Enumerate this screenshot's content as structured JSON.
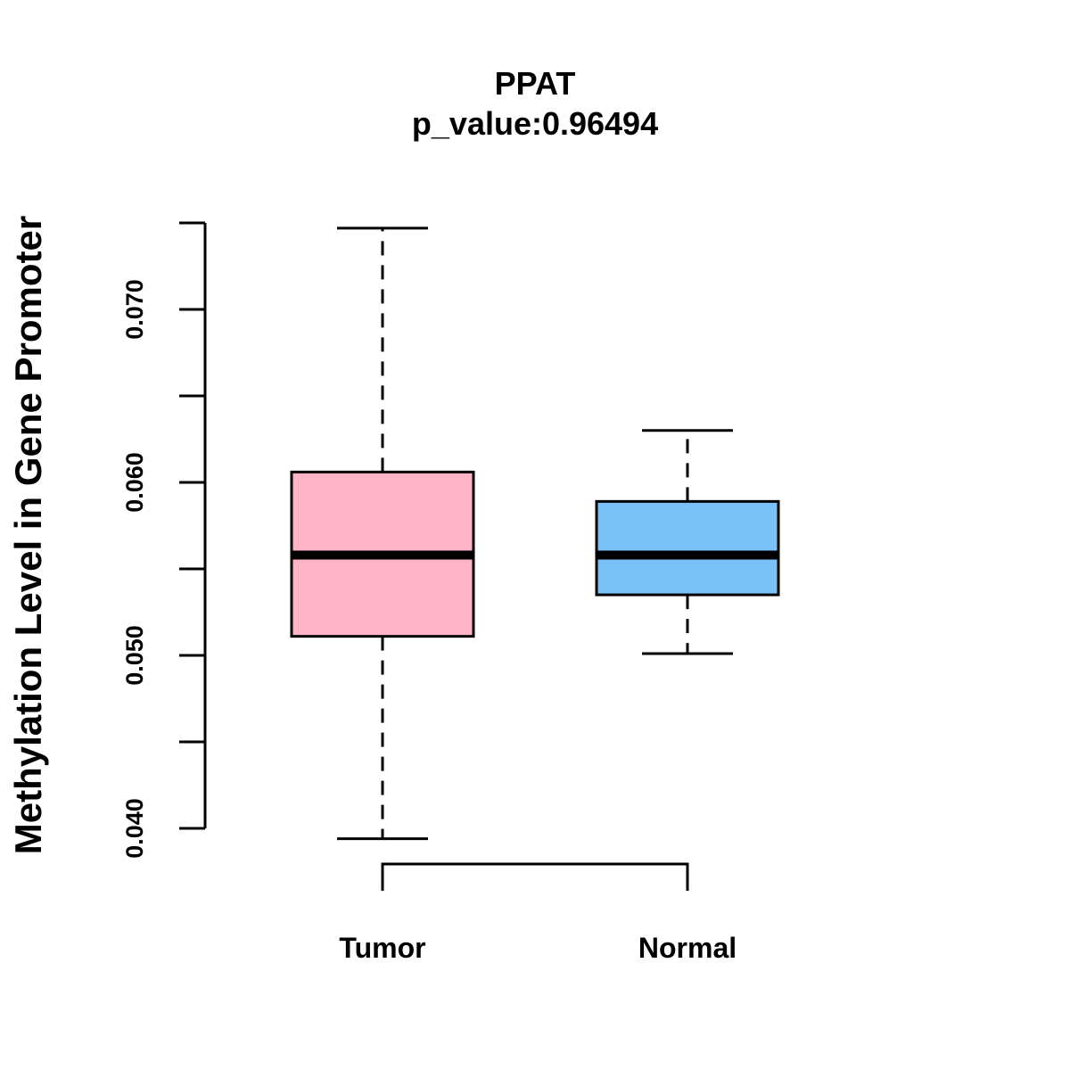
{
  "chart_data": {
    "type": "boxplot",
    "title": "PPAT",
    "subtitle": "p_value:0.96494",
    "xlabel": "",
    "ylabel": "Methylation Level in Gene Promoter",
    "ylim": [
      0.039,
      0.074
    ],
    "y_ticks": [
      0.04,
      0.045,
      0.05,
      0.055,
      0.06,
      0.065,
      0.07,
      0.075
    ],
    "y_tick_labels": [
      "0.040",
      "",
      "0.050",
      "",
      "0.060",
      "",
      "0.070",
      ""
    ],
    "categories": [
      "Tumor",
      "Normal"
    ],
    "boxes": [
      {
        "name": "Tumor",
        "whisker_low": 0.0394,
        "q1": 0.0511,
        "median": 0.0558,
        "q3": 0.0606,
        "whisker_high": 0.0747,
        "color": "#FFB3C6"
      },
      {
        "name": "Normal",
        "whisker_low": 0.0501,
        "q1": 0.0535,
        "median": 0.0558,
        "q3": 0.0589,
        "whisker_high": 0.063,
        "color": "#79C2F7"
      }
    ],
    "bracket": {
      "from": "Tumor",
      "to": "Normal"
    },
    "grid": false
  }
}
